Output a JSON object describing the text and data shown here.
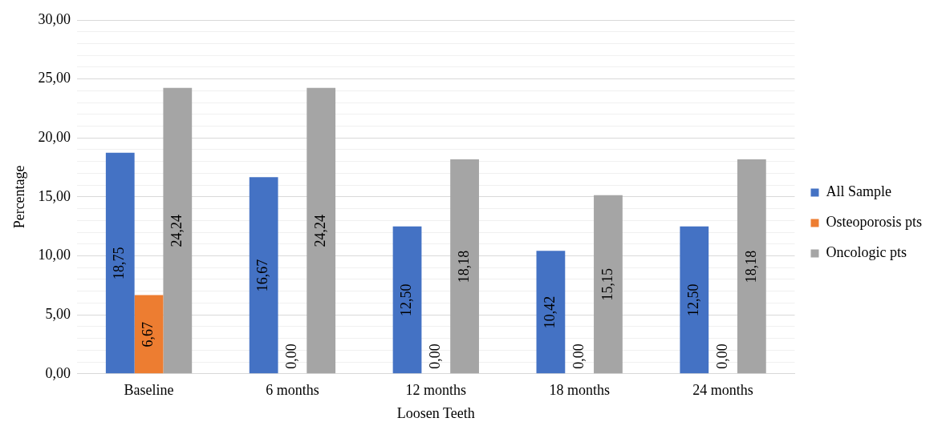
{
  "chart_data": {
    "type": "bar",
    "xlabel": "Loosen Teeth",
    "ylabel": "Percentage",
    "categories": [
      "Baseline",
      "6 months",
      "12 months",
      "18 months",
      "24 months"
    ],
    "series": [
      {
        "name": "All Sample",
        "color": "#4472c4",
        "values": [
          18.75,
          16.67,
          12.5,
          10.42,
          12.5
        ],
        "value_labels": [
          "18,75",
          "16,67",
          "12,50",
          "10,42",
          "12,50"
        ]
      },
      {
        "name": "Osteoporosis pts",
        "color": "#ed7d31",
        "values": [
          6.67,
          0,
          0,
          0,
          0
        ],
        "value_labels": [
          "6,67",
          "0,00",
          "0,00",
          "0,00",
          "0,00"
        ]
      },
      {
        "name": "Oncologic pts",
        "color": "#a5a5a5",
        "values": [
          24.24,
          24.24,
          18.18,
          15.15,
          18.18
        ],
        "value_labels": [
          "24,24",
          "24,24",
          "18,18",
          "15,15",
          "18,18"
        ]
      }
    ],
    "ylim": [
      0,
      30
    ],
    "yticks": [
      {
        "value": 0,
        "label": "0,00"
      },
      {
        "value": 1,
        "label": null
      },
      {
        "value": 2,
        "label": null
      },
      {
        "value": 3,
        "label": null
      },
      {
        "value": 4,
        "label": null
      },
      {
        "value": 5,
        "label": "5,00"
      },
      {
        "value": 6,
        "label": null
      },
      {
        "value": 7,
        "label": null
      },
      {
        "value": 8,
        "label": null
      },
      {
        "value": 9,
        "label": null
      },
      {
        "value": 10,
        "label": "10,00"
      },
      {
        "value": 11,
        "label": null
      },
      {
        "value": 12,
        "label": null
      },
      {
        "value": 13,
        "label": null
      },
      {
        "value": 14,
        "label": null
      },
      {
        "value": 15,
        "label": "15,00"
      },
      {
        "value": 16,
        "label": null
      },
      {
        "value": 17,
        "label": null
      },
      {
        "value": 18,
        "label": null
      },
      {
        "value": 19,
        "label": null
      },
      {
        "value": 20,
        "label": "20,00"
      },
      {
        "value": 21,
        "label": null
      },
      {
        "value": 22,
        "label": null
      },
      {
        "value": 23,
        "label": null
      },
      {
        "value": 24,
        "label": null
      },
      {
        "value": 25,
        "label": "25,00"
      },
      {
        "value": 26,
        "label": null
      },
      {
        "value": 27,
        "label": null
      },
      {
        "value": 28,
        "label": null
      },
      {
        "value": 29,
        "label": null
      },
      {
        "value": 30,
        "label": "30,00"
      }
    ],
    "grid": "y",
    "legend": "right"
  }
}
